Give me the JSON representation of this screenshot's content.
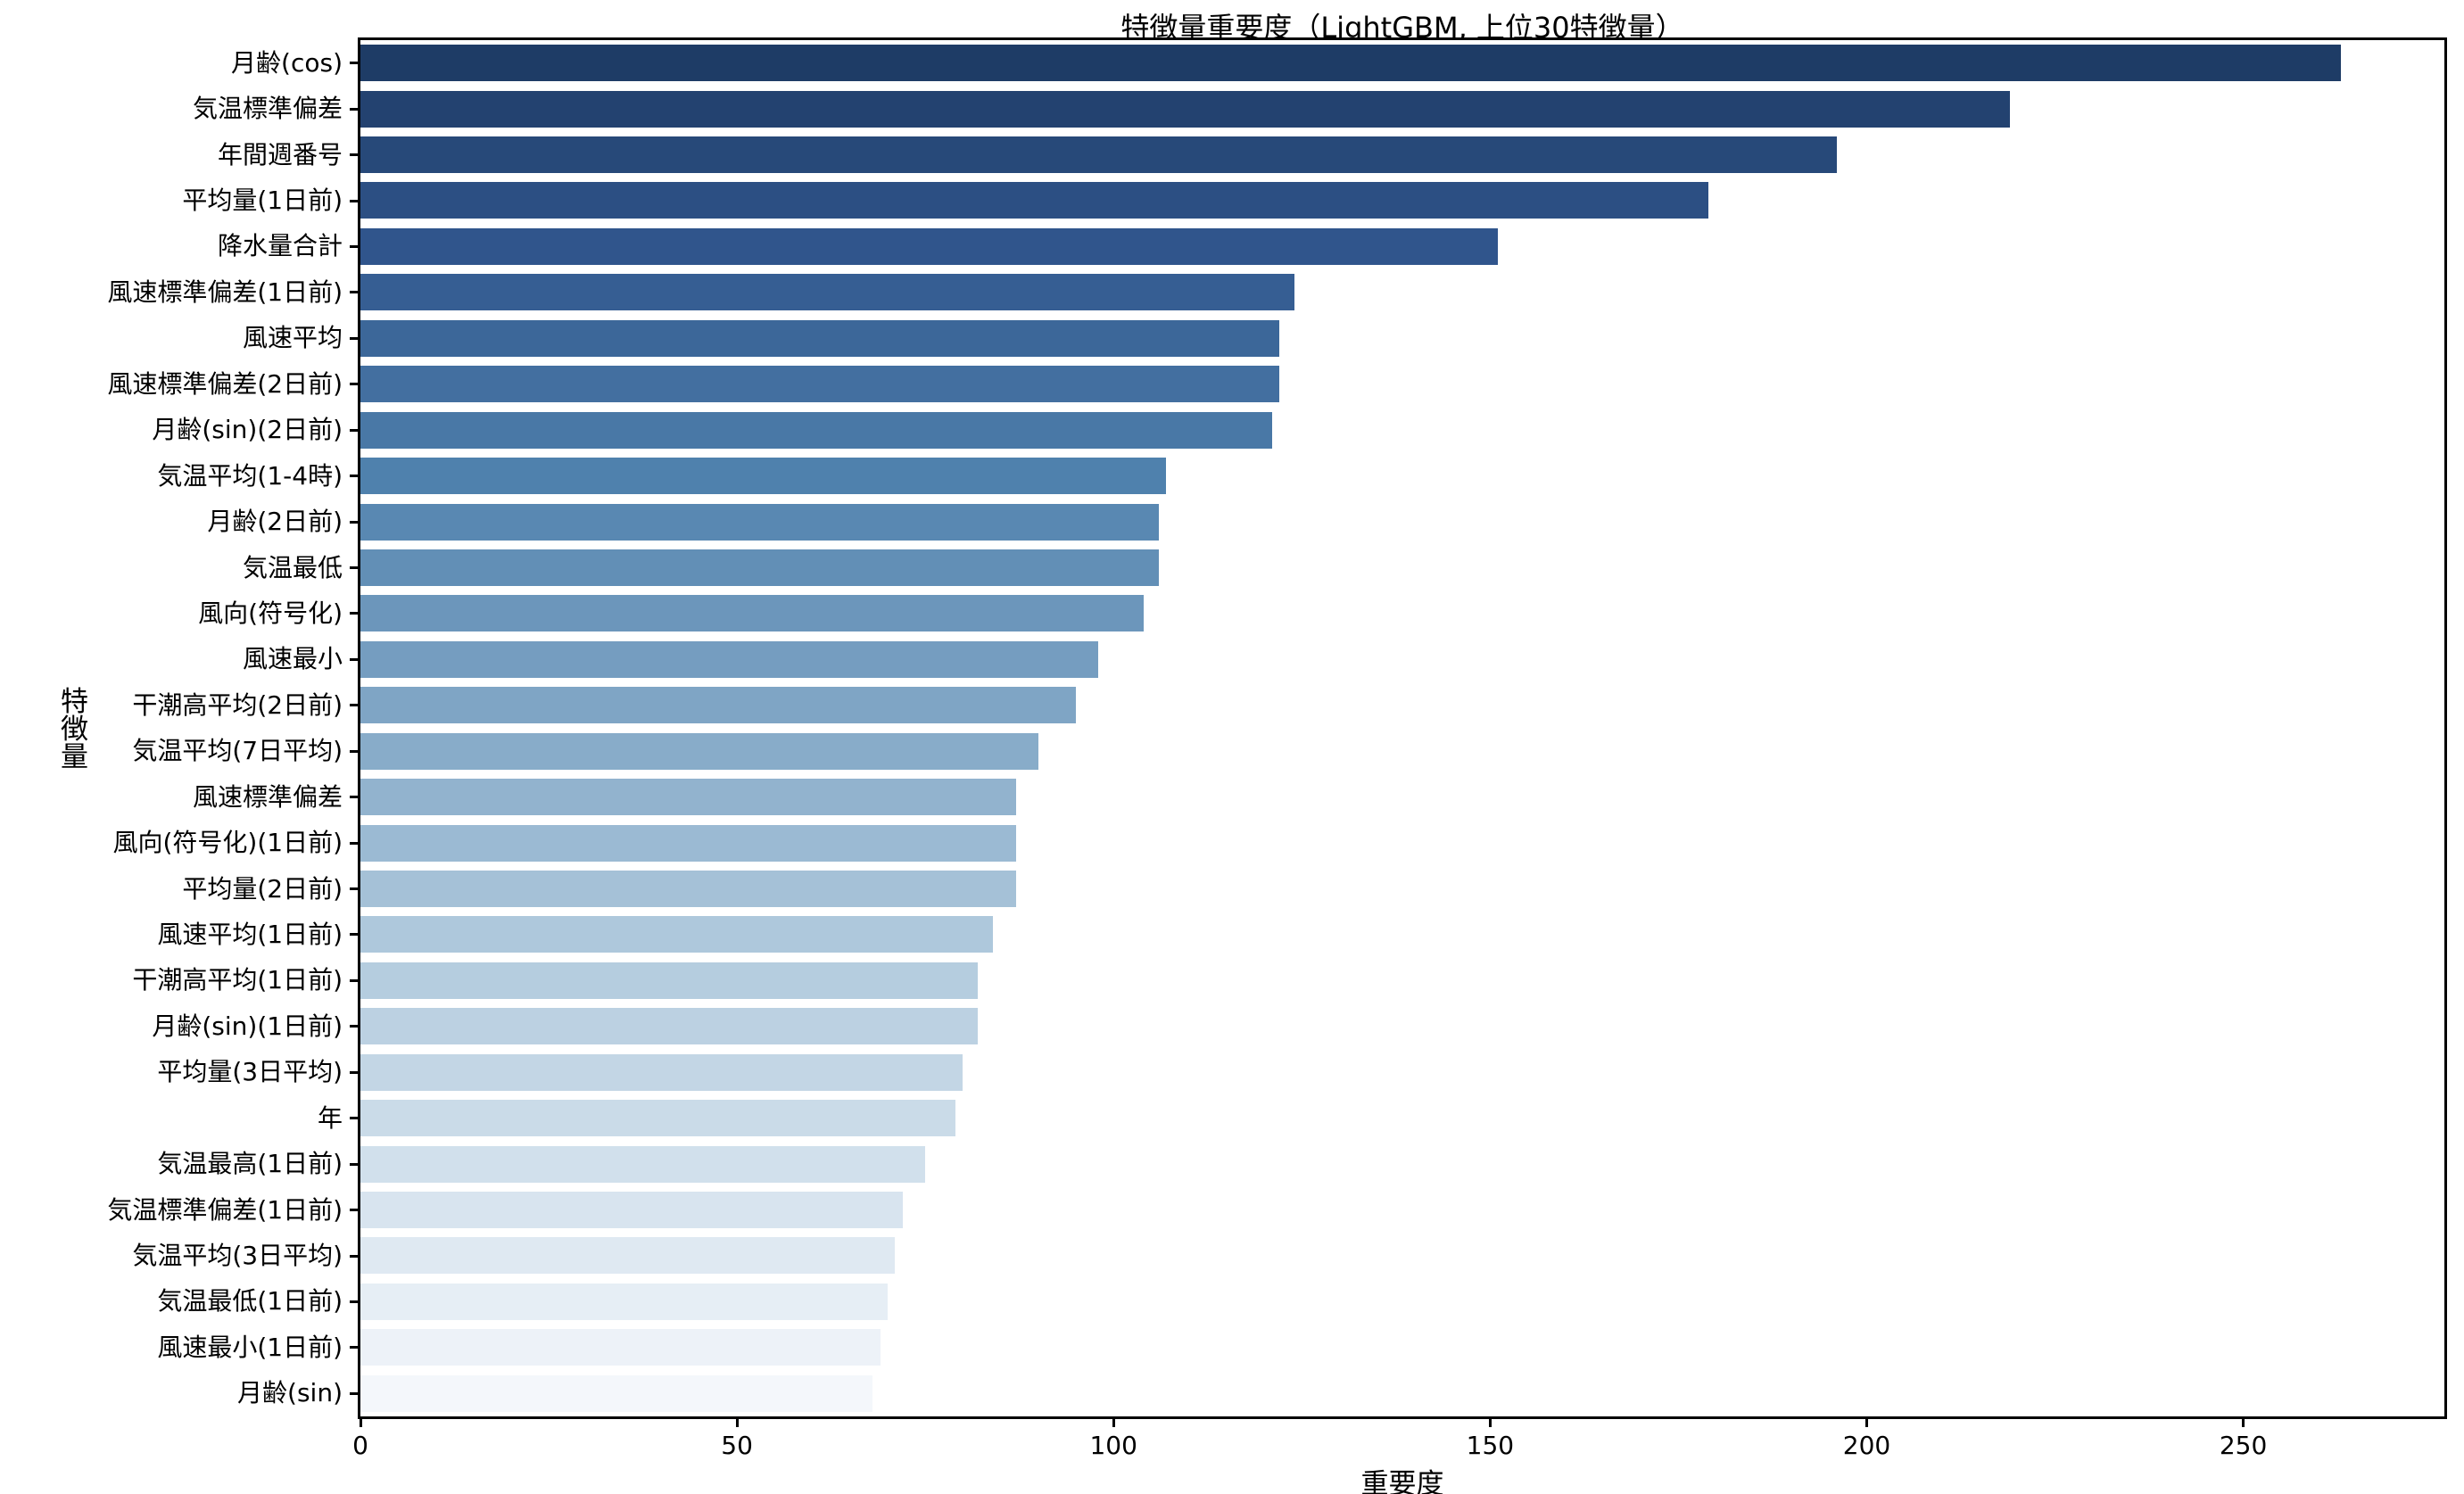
{
  "title": "特徴量重要度（LightGBM, 上位30特徴量）",
  "chart_data": {
    "type": "bar",
    "orientation": "horizontal",
    "title": "特徴量重要度（LightGBM, 上位30特徴量）",
    "xlabel": "重要度",
    "ylabel": "特徴量",
    "xlim": [
      0,
      276.7
    ],
    "xticks": [
      0,
      50,
      100,
      150,
      200,
      250
    ],
    "grid": false,
    "legend": null,
    "categories": [
      "月齢(cos)",
      "気温標準偏差",
      "年間週番号",
      "平均量(1日前)",
      "降水量合計",
      "風速標準偏差(1日前)",
      "風速平均",
      "風速標準偏差(2日前)",
      "月齢(sin)(2日前)",
      "気温平均(1-4時)",
      "月齢(2日前)",
      "気温最低",
      "風向(符号化)",
      "風速最小",
      "干潮高平均(2日前)",
      "気温平均(7日平均)",
      "風速標準偏差",
      "風向(符号化)(1日前)",
      "平均量(2日前)",
      "風速平均(1日前)",
      "干潮高平均(1日前)",
      "月齢(sin)(1日前)",
      "平均量(3日平均)",
      "年",
      "気温最高(1日前)",
      "気温標準偏差(1日前)",
      "気温平均(3日平均)",
      "気温最低(1日前)",
      "風速最小(1日前)",
      "月齢(sin)"
    ],
    "values": [
      263,
      219,
      196,
      179,
      151,
      124,
      122,
      122,
      121,
      107,
      106,
      106,
      104,
      98,
      95,
      90,
      87,
      87,
      87,
      84,
      82,
      82,
      80,
      79,
      75,
      72,
      71,
      70,
      69,
      68
    ],
    "bar_color_stops": [
      {
        "index": 0,
        "color": "#1e3c66"
      },
      {
        "index": 4,
        "color": "#30558c"
      },
      {
        "index": 9,
        "color": "#4f81ad"
      },
      {
        "index": 19,
        "color": "#aec8dc"
      },
      {
        "index": 29,
        "color": "#f4f7fb"
      }
    ],
    "axis_color": "#000000"
  }
}
